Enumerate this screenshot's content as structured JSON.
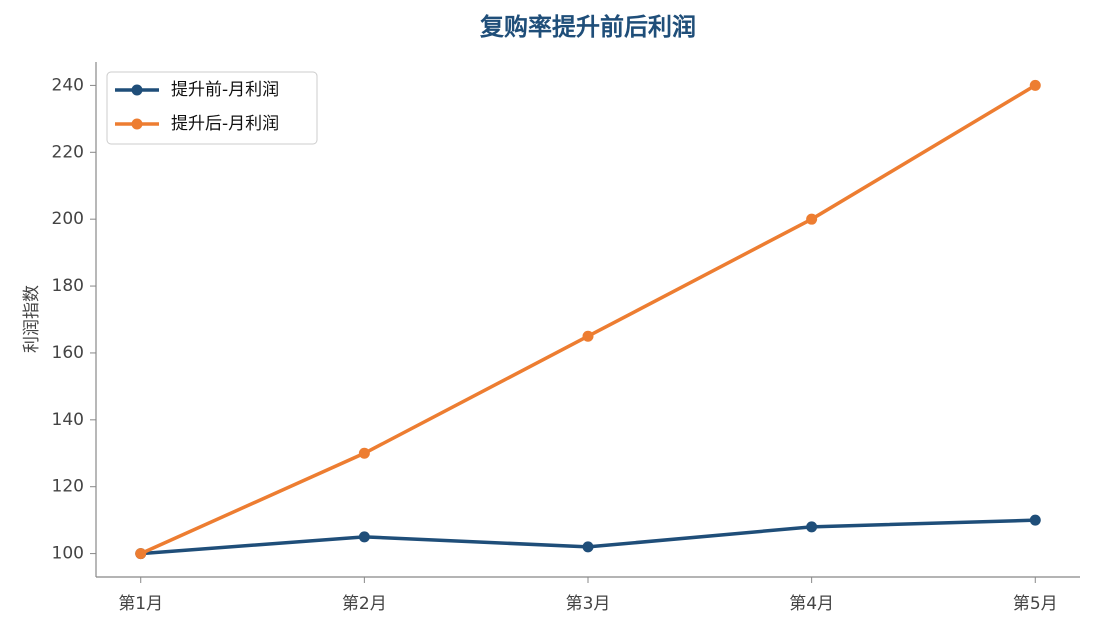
{
  "chart_data": {
    "type": "line",
    "title": "复购率提升前后利润",
    "y_label": "利润指数",
    "categories": [
      "第1月",
      "第2月",
      "第3月",
      "第4月",
      "第5月"
    ],
    "series": [
      {
        "name": "提升前-月利润",
        "color": "#1f4e79",
        "values": [
          100,
          105,
          102,
          108,
          110
        ]
      },
      {
        "name": "提升后-月利润",
        "color": "#ed7d31",
        "values": [
          100,
          130,
          165,
          200,
          240
        ]
      }
    ],
    "ylim": [
      93,
      247
    ],
    "yticks": [
      100,
      120,
      140,
      160,
      180,
      200,
      220,
      240
    ],
    "grid": false,
    "legend": "upper-left"
  }
}
